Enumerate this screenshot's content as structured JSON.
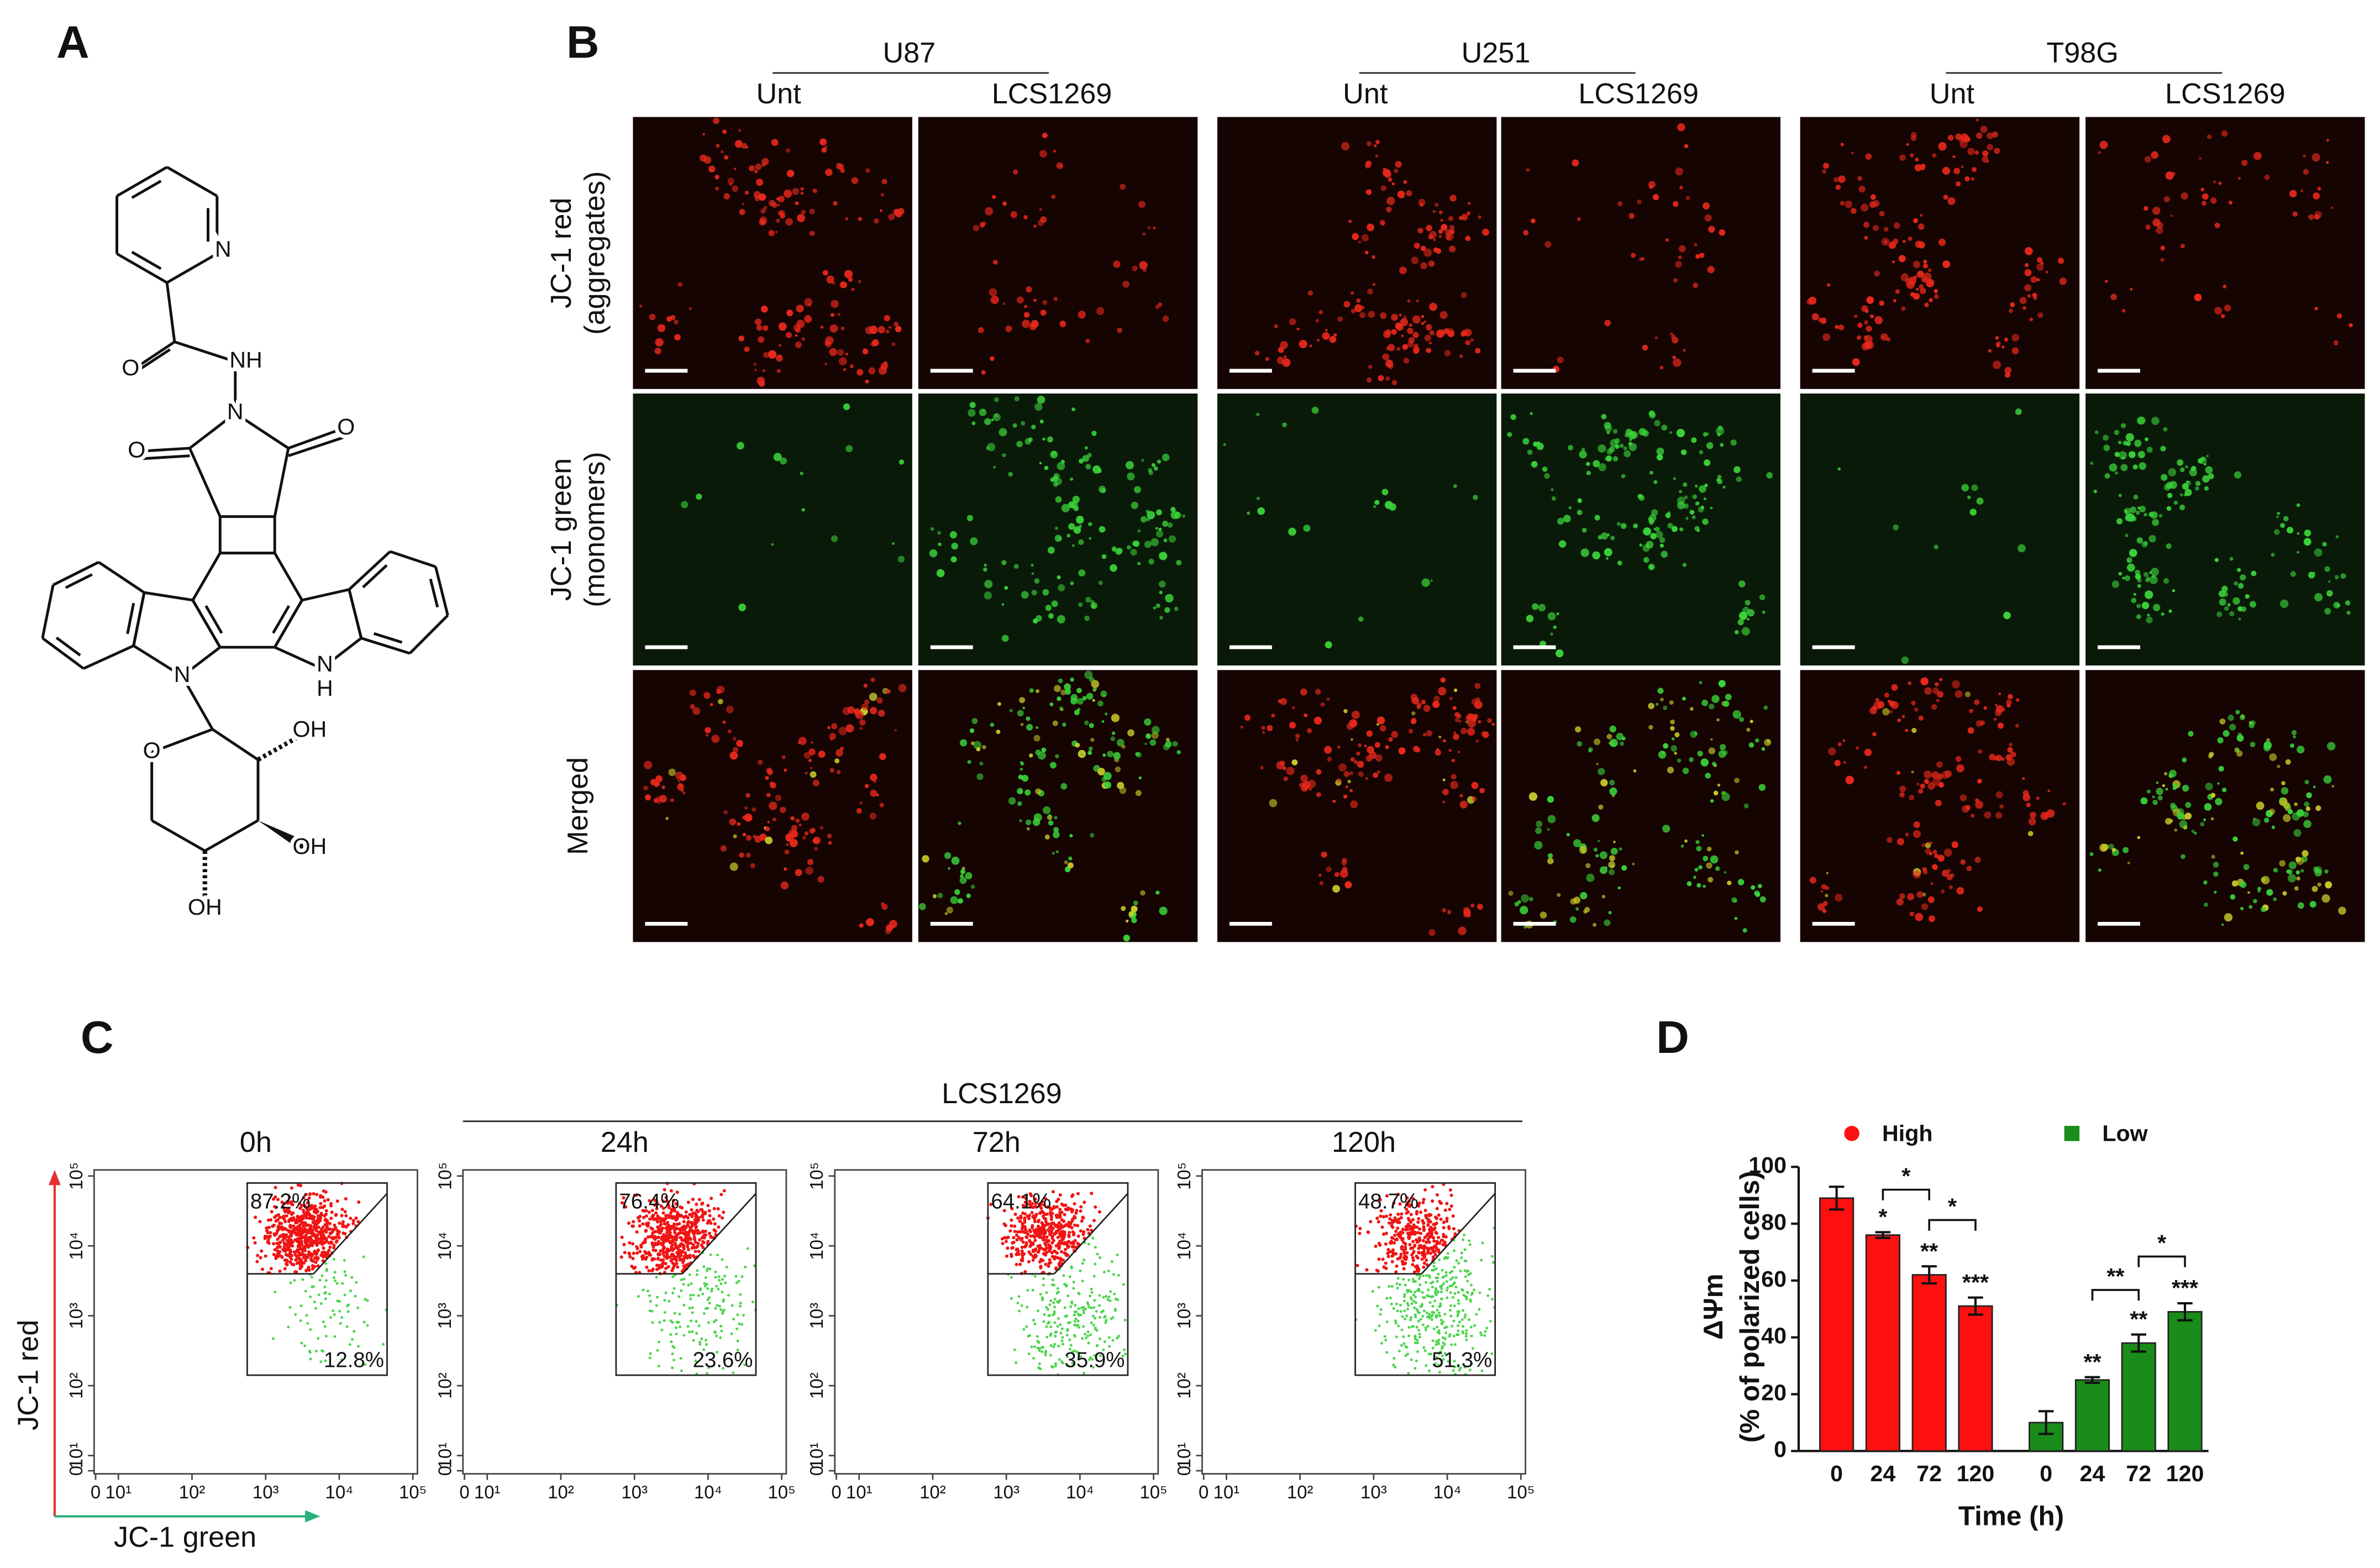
{
  "panel_labels": [
    "A",
    "B",
    "C",
    "D"
  ],
  "panel_a": {
    "atoms": [
      "N",
      "O",
      "NH",
      "N",
      "O",
      "O",
      "N",
      "N",
      "H",
      "O",
      "OH",
      "OH",
      "OH"
    ]
  },
  "panel_b": {
    "cell_lines": [
      "U87",
      "U251",
      "T98G"
    ],
    "conditions": [
      "Unt",
      "LCS1269"
    ],
    "rows": [
      [
        "JC-1 red",
        "(aggregates)"
      ],
      [
        "JC-1 green",
        "(monomers)"
      ],
      [
        "Merged"
      ]
    ]
  },
  "panel_c": {
    "treatment": "LCS1269",
    "xlabel": "JC-1 green",
    "ylabel": "JC-1 red",
    "lim": [
      0,
      100000
    ],
    "ticks": [
      {
        "value": 0,
        "label": "0"
      },
      {
        "value": 10,
        "label": "10¹"
      },
      {
        "value": 100,
        "label": "10²"
      },
      {
        "value": 1000,
        "label": "10³"
      },
      {
        "value": 10000,
        "label": "10⁴"
      },
      {
        "value": 100000,
        "label": "10⁵"
      }
    ],
    "plots": [
      {
        "title": "0h",
        "values": [
          87.2,
          12.8
        ],
        "value_labels": [
          "87.2%",
          "12.8%"
        ]
      },
      {
        "title": "24h",
        "values": [
          76.4,
          23.6
        ],
        "value_labels": [
          "76.4%",
          "23.6%"
        ]
      },
      {
        "title": "72h",
        "values": [
          64.1,
          35.9
        ],
        "value_labels": [
          "64.1%",
          "35.9%"
        ]
      },
      {
        "title": "120h",
        "values": [
          48.7,
          51.3
        ],
        "value_labels": [
          "48.7%",
          "51.3%"
        ]
      }
    ]
  },
  "chart_data": {
    "type": "bar",
    "xlabel": "Time (h)",
    "ylabel": [
      "ΔΨm",
      "(% of polarized cells)"
    ],
    "categories": [
      "0",
      "24",
      "72",
      "120"
    ],
    "series": [
      {
        "name": "High",
        "color": "#ff1010",
        "values": [
          89,
          76,
          62,
          51
        ],
        "errors": [
          4,
          1,
          3,
          3
        ],
        "significance": [
          null,
          "*",
          "**",
          "***"
        ]
      },
      {
        "name": "Low",
        "color": "#1a8c1a",
        "values": [
          10,
          25,
          38,
          49
        ],
        "errors": [
          4,
          1,
          3,
          3
        ],
        "significance": [
          null,
          "**",
          "**",
          "***"
        ]
      }
    ],
    "ylim": [
      0,
      100
    ],
    "yticks": [
      0,
      20,
      40,
      60,
      80,
      100
    ],
    "brackets": [
      {
        "label": "*"
      },
      {
        "label": "*"
      },
      {
        "label": "**"
      },
      {
        "label": "*"
      }
    ]
  }
}
